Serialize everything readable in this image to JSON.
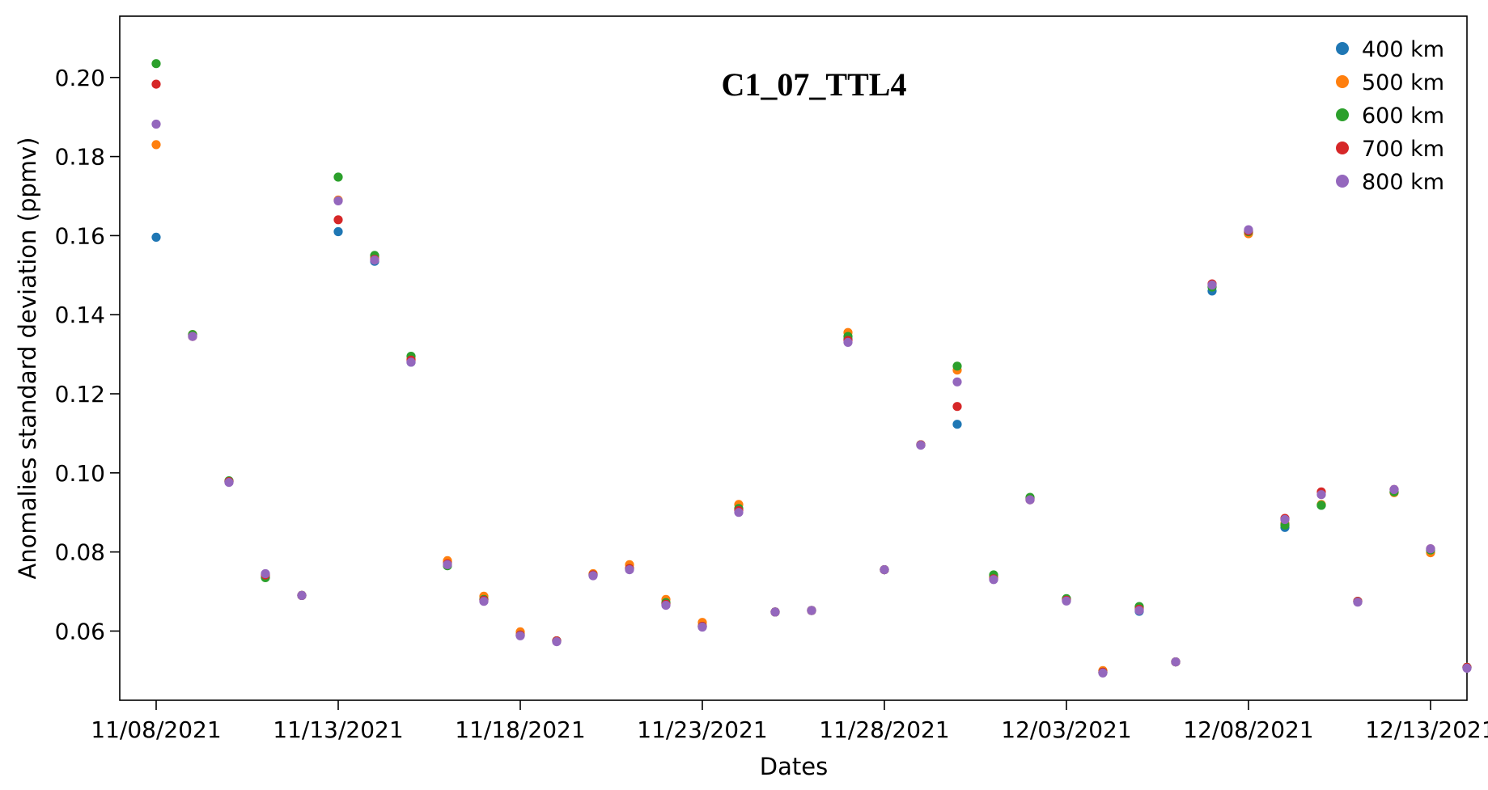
{
  "chart_data": {
    "type": "scatter",
    "title": "C1_07_TTL4",
    "xlabel": "Dates",
    "ylabel": "Anomalies standard deviation (ppmv)",
    "x_tick_labels": [
      "11/08/2021",
      "11/13/2021",
      "11/18/2021",
      "11/23/2021",
      "11/28/2021",
      "12/03/2021",
      "12/08/2021",
      "12/13/2021"
    ],
    "y_tick_labels": [
      "0.06",
      "0.08",
      "0.10",
      "0.12",
      "0.14",
      "0.16",
      "0.18",
      "0.20"
    ],
    "xlim": [
      "2021-11-07",
      "2021-12-14"
    ],
    "ylim": [
      0.0425,
      0.2155
    ],
    "legend_position": "top-right",
    "grid": false,
    "series": [
      {
        "name": "400 km",
        "color": "#1f77b4",
        "points": [
          [
            "2021-11-08",
            0.1596
          ],
          [
            "2021-11-09",
            0.1348
          ],
          [
            "2021-11-10",
            0.0978
          ],
          [
            "2021-11-11",
            0.0736
          ],
          [
            "2021-11-12",
            0.069
          ],
          [
            "2021-11-13",
            0.161
          ],
          [
            "2021-11-14",
            0.1535
          ],
          [
            "2021-11-15",
            0.128
          ],
          [
            "2021-11-16",
            0.0775
          ],
          [
            "2021-11-17",
            0.068
          ],
          [
            "2021-11-18",
            0.059
          ],
          [
            "2021-11-19",
            0.0575
          ],
          [
            "2021-11-20",
            0.0742
          ],
          [
            "2021-11-21",
            0.0758
          ],
          [
            "2021-11-22",
            0.067
          ],
          [
            "2021-11-23",
            0.0612
          ],
          [
            "2021-11-24",
            0.0908
          ],
          [
            "2021-11-25",
            0.0648
          ],
          [
            "2021-11-26",
            0.0652
          ],
          [
            "2021-11-27",
            0.1338
          ],
          [
            "2021-11-28",
            0.0755
          ],
          [
            "2021-11-29",
            0.1071
          ],
          [
            "2021-11-30",
            0.1123
          ],
          [
            "2021-12-01",
            0.0735
          ],
          [
            "2021-12-02",
            0.0935
          ],
          [
            "2021-12-03",
            0.068
          ],
          [
            "2021-12-04",
            0.0496
          ],
          [
            "2021-12-05",
            0.065
          ],
          [
            "2021-12-06",
            0.0522
          ],
          [
            "2021-12-07",
            0.146
          ],
          [
            "2021-12-08",
            0.1608
          ],
          [
            "2021-12-09",
            0.0862
          ],
          [
            "2021-12-10",
            0.0918
          ],
          [
            "2021-12-11",
            0.0675
          ],
          [
            "2021-12-12",
            0.0952
          ],
          [
            "2021-12-13",
            0.0805
          ],
          [
            "2021-12-14",
            0.0508
          ]
        ]
      },
      {
        "name": "500 km",
        "color": "#ff7f0e",
        "points": [
          [
            "2021-11-08",
            0.183
          ],
          [
            "2021-11-09",
            0.135
          ],
          [
            "2021-11-10",
            0.0978
          ],
          [
            "2021-11-11",
            0.0742
          ],
          [
            "2021-11-12",
            0.069
          ],
          [
            "2021-11-13",
            0.169
          ],
          [
            "2021-11-14",
            0.1545
          ],
          [
            "2021-11-15",
            0.1288
          ],
          [
            "2021-11-16",
            0.0778
          ],
          [
            "2021-11-17",
            0.0688
          ],
          [
            "2021-11-18",
            0.0598
          ],
          [
            "2021-11-19",
            0.0575
          ],
          [
            "2021-11-20",
            0.0745
          ],
          [
            "2021-11-21",
            0.0768
          ],
          [
            "2021-11-22",
            0.068
          ],
          [
            "2021-11-23",
            0.0622
          ],
          [
            "2021-11-24",
            0.092
          ],
          [
            "2021-11-25",
            0.0648
          ],
          [
            "2021-11-26",
            0.0652
          ],
          [
            "2021-11-27",
            0.1355
          ],
          [
            "2021-11-28",
            0.0755
          ],
          [
            "2021-11-29",
            0.1071
          ],
          [
            "2021-11-30",
            0.126
          ],
          [
            "2021-12-01",
            0.0738
          ],
          [
            "2021-12-02",
            0.0935
          ],
          [
            "2021-12-03",
            0.068
          ],
          [
            "2021-12-04",
            0.05
          ],
          [
            "2021-12-05",
            0.066
          ],
          [
            "2021-12-06",
            0.0522
          ],
          [
            "2021-12-07",
            0.1472
          ],
          [
            "2021-12-08",
            0.1605
          ],
          [
            "2021-12-09",
            0.0872
          ],
          [
            "2021-12-10",
            0.092
          ],
          [
            "2021-12-11",
            0.0675
          ],
          [
            "2021-12-12",
            0.095
          ],
          [
            "2021-12-13",
            0.0798
          ],
          [
            "2021-12-14",
            0.0508
          ]
        ]
      },
      {
        "name": "600 km",
        "color": "#2ca02c",
        "points": [
          [
            "2021-11-08",
            0.2035
          ],
          [
            "2021-11-09",
            0.135
          ],
          [
            "2021-11-10",
            0.098
          ],
          [
            "2021-11-11",
            0.0735
          ],
          [
            "2021-11-12",
            0.069
          ],
          [
            "2021-11-13",
            0.1748
          ],
          [
            "2021-11-14",
            0.155
          ],
          [
            "2021-11-15",
            0.1295
          ],
          [
            "2021-11-16",
            0.0765
          ],
          [
            "2021-11-17",
            0.068
          ],
          [
            "2021-11-18",
            0.059
          ],
          [
            "2021-11-19",
            0.0575
          ],
          [
            "2021-11-20",
            0.0742
          ],
          [
            "2021-11-21",
            0.0758
          ],
          [
            "2021-11-22",
            0.0672
          ],
          [
            "2021-11-23",
            0.0612
          ],
          [
            "2021-11-24",
            0.091
          ],
          [
            "2021-11-25",
            0.0648
          ],
          [
            "2021-11-26",
            0.0652
          ],
          [
            "2021-11-27",
            0.1345
          ],
          [
            "2021-11-28",
            0.0755
          ],
          [
            "2021-11-29",
            0.1071
          ],
          [
            "2021-11-30",
            0.127
          ],
          [
            "2021-12-01",
            0.0742
          ],
          [
            "2021-12-02",
            0.0938
          ],
          [
            "2021-12-03",
            0.0682
          ],
          [
            "2021-12-04",
            0.0496
          ],
          [
            "2021-12-05",
            0.0662
          ],
          [
            "2021-12-06",
            0.0522
          ],
          [
            "2021-12-07",
            0.147
          ],
          [
            "2021-12-08",
            0.161
          ],
          [
            "2021-12-09",
            0.0868
          ],
          [
            "2021-12-10",
            0.0918
          ],
          [
            "2021-12-11",
            0.0675
          ],
          [
            "2021-12-12",
            0.0952
          ],
          [
            "2021-12-13",
            0.0805
          ],
          [
            "2021-12-14",
            0.0508
          ]
        ]
      },
      {
        "name": "700 km",
        "color": "#d62728",
        "points": [
          [
            "2021-11-08",
            0.1983
          ],
          [
            "2021-11-09",
            0.1345
          ],
          [
            "2021-11-10",
            0.0978
          ],
          [
            "2021-11-11",
            0.0742
          ],
          [
            "2021-11-12",
            0.069
          ],
          [
            "2021-11-13",
            0.164
          ],
          [
            "2021-11-14",
            0.154
          ],
          [
            "2021-11-15",
            0.1285
          ],
          [
            "2021-11-16",
            0.077
          ],
          [
            "2021-11-17",
            0.0678
          ],
          [
            "2021-11-18",
            0.059
          ],
          [
            "2021-11-19",
            0.0575
          ],
          [
            "2021-11-20",
            0.0742
          ],
          [
            "2021-11-21",
            0.0758
          ],
          [
            "2021-11-22",
            0.0668
          ],
          [
            "2021-11-23",
            0.0612
          ],
          [
            "2021-11-24",
            0.0905
          ],
          [
            "2021-11-25",
            0.0648
          ],
          [
            "2021-11-26",
            0.0652
          ],
          [
            "2021-11-27",
            0.1335
          ],
          [
            "2021-11-28",
            0.0755
          ],
          [
            "2021-11-29",
            0.1071
          ],
          [
            "2021-11-30",
            0.1168
          ],
          [
            "2021-12-01",
            0.0732
          ],
          [
            "2021-12-02",
            0.0932
          ],
          [
            "2021-12-03",
            0.0678
          ],
          [
            "2021-12-04",
            0.0496
          ],
          [
            "2021-12-05",
            0.0655
          ],
          [
            "2021-12-06",
            0.0522
          ],
          [
            "2021-12-07",
            0.1478
          ],
          [
            "2021-12-08",
            0.1612
          ],
          [
            "2021-12-09",
            0.0885
          ],
          [
            "2021-12-10",
            0.0952
          ],
          [
            "2021-12-11",
            0.0675
          ],
          [
            "2021-12-12",
            0.0958
          ],
          [
            "2021-12-13",
            0.0808
          ],
          [
            "2021-12-14",
            0.0508
          ]
        ]
      },
      {
        "name": "800 km",
        "color": "#9467bd",
        "points": [
          [
            "2021-11-08",
            0.1882
          ],
          [
            "2021-11-09",
            0.1345
          ],
          [
            "2021-11-10",
            0.0976
          ],
          [
            "2021-11-11",
            0.0745
          ],
          [
            "2021-11-12",
            0.069
          ],
          [
            "2021-11-13",
            0.1688
          ],
          [
            "2021-11-14",
            0.1538
          ],
          [
            "2021-11-15",
            0.128
          ],
          [
            "2021-11-16",
            0.0768
          ],
          [
            "2021-11-17",
            0.0675
          ],
          [
            "2021-11-18",
            0.0588
          ],
          [
            "2021-11-19",
            0.0573
          ],
          [
            "2021-11-20",
            0.074
          ],
          [
            "2021-11-21",
            0.0755
          ],
          [
            "2021-11-22",
            0.0665
          ],
          [
            "2021-11-23",
            0.061
          ],
          [
            "2021-11-24",
            0.09
          ],
          [
            "2021-11-25",
            0.0648
          ],
          [
            "2021-11-26",
            0.0652
          ],
          [
            "2021-11-27",
            0.133
          ],
          [
            "2021-11-28",
            0.0755
          ],
          [
            "2021-11-29",
            0.107
          ],
          [
            "2021-11-30",
            0.123
          ],
          [
            "2021-12-01",
            0.073
          ],
          [
            "2021-12-02",
            0.0932
          ],
          [
            "2021-12-03",
            0.0676
          ],
          [
            "2021-12-04",
            0.0494
          ],
          [
            "2021-12-05",
            0.0652
          ],
          [
            "2021-12-06",
            0.0522
          ],
          [
            "2021-12-07",
            0.1475
          ],
          [
            "2021-12-08",
            0.1615
          ],
          [
            "2021-12-09",
            0.0882
          ],
          [
            "2021-12-10",
            0.0945
          ],
          [
            "2021-12-11",
            0.0673
          ],
          [
            "2021-12-12",
            0.0958
          ],
          [
            "2021-12-13",
            0.0808
          ],
          [
            "2021-12-14",
            0.0506
          ]
        ]
      }
    ]
  }
}
